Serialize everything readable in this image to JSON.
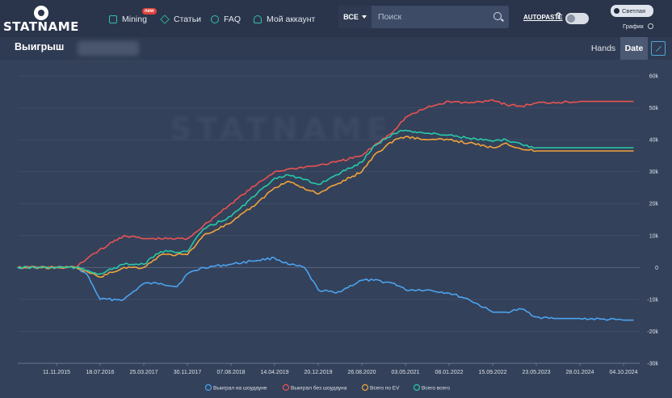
{
  "header": {
    "logo_text": "STATNAME",
    "nav": [
      {
        "label": "Mining",
        "icon": "mining-icon",
        "badge": "new"
      },
      {
        "label": "Статьи",
        "icon": "diamond-icon"
      },
      {
        "label": "FAQ",
        "icon": "help-circle-icon"
      },
      {
        "label": "Мой аккаунт",
        "icon": "user-icon"
      }
    ],
    "search": {
      "scope": "ВСЕ",
      "placeholder": "Поиск"
    },
    "autopaste_label": "AUTOPASTE",
    "help_mark": "?",
    "theme_light_label": "Светлая",
    "chart_label": "График"
  },
  "subheader": {
    "title": "Выигрыш",
    "tabs": [
      "Hands",
      "Date"
    ],
    "active_tab": "Date"
  },
  "chart_data": {
    "type": "line",
    "x_ticks": [
      "11.11.2015",
      "18.07.2016",
      "25.03.2017",
      "30.11.2017",
      "07.08.2018",
      "14.04.2019",
      "20.12.2019",
      "26.08.2020",
      "03.05.2021",
      "08.01.2022",
      "15.09.2022",
      "23.05.2023",
      "28.01.2024",
      "04.10.2024"
    ],
    "y_ticks": [
      "60k",
      "50k",
      "40k",
      "30k",
      "20k",
      "10k",
      "0",
      "-10k",
      "-20k",
      "-30k"
    ],
    "ylim": [
      -30000,
      60000
    ],
    "grid": true,
    "legend_position": "bottom",
    "series": [
      {
        "name": "Выиграл на шоудауне",
        "color": "#4aa3f0",
        "x": [
          "2015-04-01",
          "2015-11-11",
          "2016-03-01",
          "2016-05-01",
          "2016-07-18",
          "2016-12-01",
          "2017-03-25",
          "2017-07-01",
          "2017-10-01",
          "2017-11-30",
          "2018-03-01",
          "2018-08-07",
          "2018-12-01",
          "2019-04-14",
          "2019-07-01",
          "2019-10-01",
          "2019-12-20",
          "2020-04-01",
          "2020-08-26",
          "2020-11-01",
          "2021-03-01",
          "2021-05-03",
          "2021-09-01",
          "2022-01-08",
          "2022-05-01",
          "2022-09-15",
          "2022-12-01",
          "2023-03-01",
          "2023-05-23",
          "2023-09-01",
          "2024-01-28",
          "2024-06-01",
          "2024-10-04",
          "2024-12-01"
        ],
        "y": [
          0,
          0,
          0,
          -2000,
          -10000,
          -10000,
          -5000,
          -5000,
          -6000,
          -2000,
          0,
          1000,
          2000,
          3000,
          1000,
          0,
          -7000,
          -8000,
          -4000,
          -4000,
          -5000,
          -7000,
          -7000,
          -8000,
          -10000,
          -14000,
          -14000,
          -13000,
          -15500,
          -16000,
          -16000,
          -16200,
          -16500,
          -16500
        ]
      },
      {
        "name": "Выиграл без шоудауна",
        "color": "#e85353",
        "x": [
          "2015-04-01",
          "2015-11-11",
          "2016-03-01",
          "2016-06-01",
          "2016-09-01",
          "2016-12-01",
          "2017-03-25",
          "2017-11-30",
          "2018-03-01",
          "2018-08-07",
          "2019-01-01",
          "2019-04-14",
          "2019-08-01",
          "2019-12-20",
          "2020-04-01",
          "2020-08-26",
          "2020-11-01",
          "2021-03-01",
          "2021-05-03",
          "2021-09-01",
          "2022-01-08",
          "2022-05-01",
          "2022-09-15",
          "2022-12-01",
          "2023-03-01",
          "2023-05-23",
          "2024-01-28",
          "2024-10-04",
          "2024-12-01"
        ],
        "y": [
          0,
          0,
          0,
          4000,
          7000,
          10000,
          9000,
          9000,
          13000,
          20000,
          26000,
          30000,
          31000,
          32000,
          33000,
          35000,
          38000,
          43000,
          47000,
          50000,
          52000,
          51500,
          52500,
          51000,
          50500,
          51500,
          52000,
          52000,
          52000
        ]
      },
      {
        "name": "Всего по EV",
        "color": "#f0a33b",
        "x": [
          "2015-04-01",
          "2015-11-11",
          "2016-03-01",
          "2016-07-18",
          "2016-12-01",
          "2017-03-25",
          "2017-07-01",
          "2017-11-30",
          "2018-03-01",
          "2018-08-07",
          "2019-01-01",
          "2019-04-14",
          "2019-07-01",
          "2019-12-20",
          "2020-04-01",
          "2020-08-26",
          "2020-11-01",
          "2021-03-01",
          "2021-05-03",
          "2021-09-01",
          "2022-01-08",
          "2022-05-01",
          "2022-09-15",
          "2022-12-01",
          "2023-03-01",
          "2023-05-23",
          "2024-01-28",
          "2024-10-04",
          "2024-12-01"
        ],
        "y": [
          0,
          0,
          0,
          -3000,
          0,
          0,
          4000,
          4000,
          10000,
          14000,
          20000,
          25000,
          27000,
          23000,
          26000,
          30000,
          35000,
          40000,
          41000,
          40000,
          40000,
          39000,
          37500,
          39000,
          37000,
          36500,
          36500,
          36500,
          36500
        ]
      },
      {
        "name": "Всего всего",
        "color": "#27c9a8",
        "x": [
          "2015-04-01",
          "2015-11-11",
          "2016-03-01",
          "2016-07-18",
          "2016-12-01",
          "2017-03-25",
          "2017-07-01",
          "2017-11-30",
          "2018-03-01",
          "2018-08-07",
          "2019-01-01",
          "2019-04-14",
          "2019-07-01",
          "2019-12-20",
          "2020-04-01",
          "2020-08-26",
          "2020-11-01",
          "2021-03-01",
          "2021-05-03",
          "2021-09-01",
          "2022-01-08",
          "2022-05-01",
          "2022-09-15",
          "2022-12-01",
          "2023-03-01",
          "2023-05-23",
          "2024-01-28",
          "2024-10-04",
          "2024-12-01"
        ],
        "y": [
          0,
          0,
          0,
          -2000,
          1000,
          1000,
          5000,
          5000,
          12000,
          16000,
          23000,
          28000,
          29000,
          26000,
          29000,
          33000,
          38000,
          42000,
          43000,
          42000,
          41500,
          40500,
          39500,
          40000,
          38500,
          37500,
          37500,
          37500,
          37500
        ]
      }
    ]
  }
}
